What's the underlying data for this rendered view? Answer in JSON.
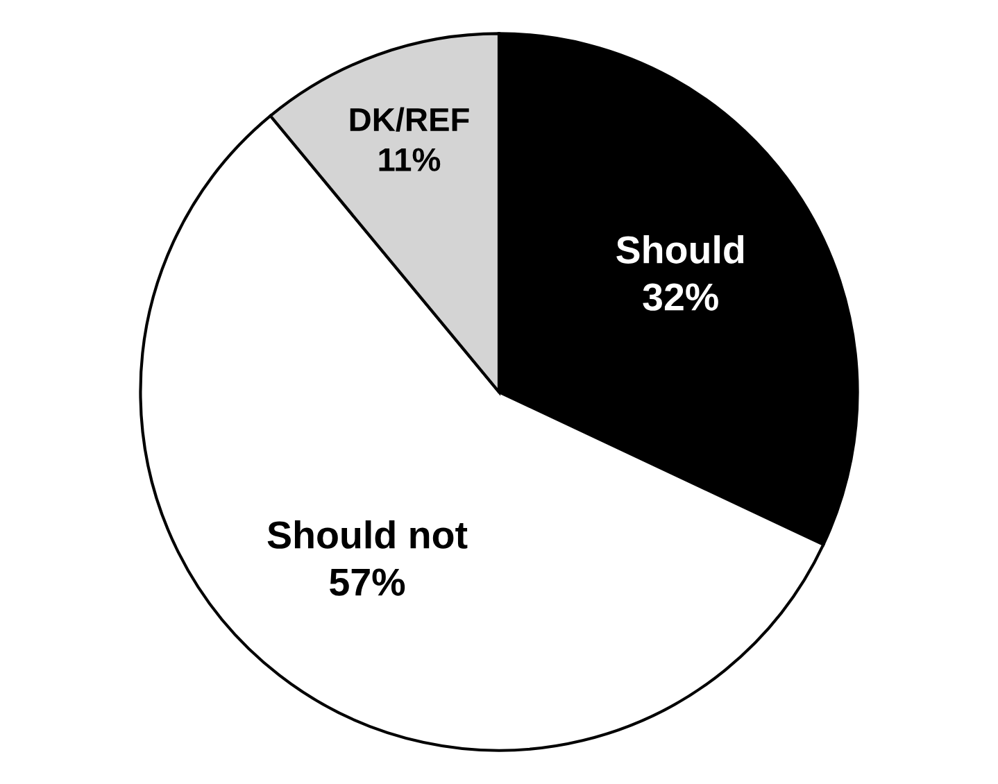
{
  "chart_data": {
    "type": "pie",
    "categories": [
      "Should",
      "Should not",
      "DK/REF"
    ],
    "values": [
      32,
      57,
      11
    ],
    "value_labels": [
      "32%",
      "57%",
      "11%"
    ],
    "colors": [
      "#000000",
      "#ffffff",
      "#d4d4d4"
    ]
  }
}
